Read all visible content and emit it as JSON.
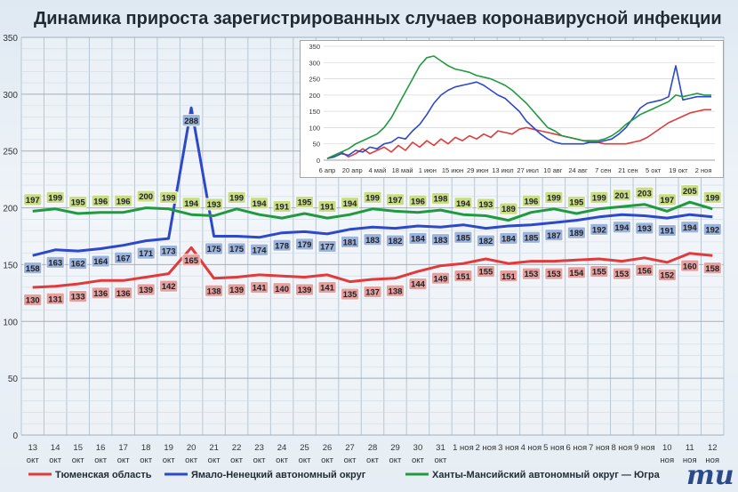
{
  "title": "Динамика прироста зарегистрированных случаев коронавирусной инфекции",
  "logo_text": "mu",
  "colors": {
    "red": "#e03a3a",
    "blue": "#2d48c8",
    "green": "#1f9a3f",
    "red_label_bg": "#e6a0a0",
    "blue_label_bg": "#9cb3dd",
    "green_label_bg": "#c8dd86"
  },
  "chart_data": [
    {
      "type": "line",
      "title": "Динамика прироста зарегистрированных случаев коронавирусной инфекции",
      "ylim": [
        0,
        350
      ],
      "y_ticks": [
        0,
        50,
        100,
        150,
        200,
        250,
        300,
        350
      ],
      "grid": true,
      "legend_placement": "bottom",
      "categories": [
        {
          "day": "13",
          "month": "окт"
        },
        {
          "day": "14",
          "month": "окт"
        },
        {
          "day": "15",
          "month": "окт"
        },
        {
          "day": "16",
          "month": "окт"
        },
        {
          "day": "17",
          "month": "окт"
        },
        {
          "day": "18",
          "month": "окт"
        },
        {
          "day": "19",
          "month": "окт"
        },
        {
          "day": "20",
          "month": "окт"
        },
        {
          "day": "21",
          "month": "окт"
        },
        {
          "day": "22",
          "month": "окт"
        },
        {
          "day": "23",
          "month": "окт"
        },
        {
          "day": "24",
          "month": "окт"
        },
        {
          "day": "25",
          "month": "окт"
        },
        {
          "day": "26",
          "month": "окт"
        },
        {
          "day": "27",
          "month": "окт"
        },
        {
          "day": "28",
          "month": "окт"
        },
        {
          "day": "29",
          "month": "окт"
        },
        {
          "day": "30",
          "month": "окт"
        },
        {
          "day": "31",
          "month": "окт"
        },
        {
          "day": "1 ноя",
          "month": ""
        },
        {
          "day": "2 ноя",
          "month": ""
        },
        {
          "day": "3 ноя",
          "month": ""
        },
        {
          "day": "4 ноя",
          "month": ""
        },
        {
          "day": "5 ноя",
          "month": ""
        },
        {
          "day": "6 ноя",
          "month": ""
        },
        {
          "day": "7 ноя",
          "month": ""
        },
        {
          "day": "8 ноя",
          "month": ""
        },
        {
          "day": "9 ноя",
          "month": ""
        },
        {
          "day": "10",
          "month": "ноя"
        },
        {
          "day": "11",
          "month": "ноя"
        },
        {
          "day": "12",
          "month": "ноя"
        }
      ],
      "series": [
        {
          "name": "Тюменская область",
          "color": "#e03a3a",
          "values": [
            130,
            131,
            133,
            136,
            136,
            139,
            142,
            165,
            138,
            139,
            141,
            140,
            139,
            141,
            135,
            137,
            138,
            144,
            149,
            151,
            155,
            151,
            153,
            153,
            154,
            155,
            153,
            156,
            152,
            160,
            158
          ]
        },
        {
          "name": "Ямало-Ненецкий автономный округ",
          "color": "#2d48c8",
          "values": [
            158,
            163,
            162,
            164,
            167,
            171,
            173,
            288,
            175,
            175,
            174,
            178,
            179,
            177,
            181,
            183,
            182,
            184,
            183,
            185,
            182,
            184,
            185,
            187,
            189,
            192,
            194,
            193,
            191,
            194,
            192
          ]
        },
        {
          "name": "Ханты-Мансийский автономный округ — Югра",
          "color": "#1f9a3f",
          "values": [
            197,
            199,
            195,
            196,
            196,
            200,
            199,
            194,
            193,
            199,
            194,
            191,
            195,
            191,
            194,
            199,
            197,
            196,
            198,
            194,
            193,
            189,
            196,
            199,
            195,
            199,
            201,
            203,
            197,
            205,
            199
          ]
        }
      ]
    },
    {
      "type": "line",
      "ylim": [
        0,
        350
      ],
      "y_ticks": [
        0,
        50,
        100,
        150,
        200,
        250,
        300,
        350
      ],
      "grid": true,
      "x_ticks": [
        "6 апр",
        "20 апр",
        "4 май",
        "18 май",
        "1 июн",
        "15 июн",
        "29 июн",
        "13 июл",
        "27 июл",
        "10 авг",
        "24 авг",
        "7 сен",
        "21 сен",
        "5 окт",
        "19 окт",
        "2 ноя"
      ],
      "series": [
        {
          "color": "#e03a3a",
          "values": [
            5,
            15,
            25,
            10,
            20,
            35,
            20,
            30,
            40,
            25,
            45,
            30,
            55,
            40,
            60,
            45,
            65,
            50,
            70,
            60,
            75,
            65,
            80,
            70,
            90,
            85,
            80,
            95,
            100,
            95,
            90,
            85,
            80,
            75,
            70,
            65,
            60,
            55,
            55,
            50,
            50,
            50,
            50,
            55,
            60,
            70,
            85,
            100,
            115,
            125,
            135,
            145,
            150,
            155,
            155
          ]
        },
        {
          "color": "#2d48c8",
          "values": [
            5,
            10,
            20,
            15,
            30,
            25,
            40,
            35,
            50,
            55,
            70,
            65,
            90,
            110,
            140,
            175,
            200,
            215,
            225,
            230,
            235,
            240,
            230,
            215,
            200,
            190,
            170,
            150,
            120,
            100,
            80,
            65,
            55,
            50,
            50,
            50,
            50,
            55,
            55,
            60,
            65,
            80,
            100,
            130,
            160,
            175,
            180,
            185,
            195,
            290,
            185,
            190,
            195,
            195,
            195
          ]
        },
        {
          "color": "#1f9a3f",
          "values": [
            5,
            15,
            25,
            35,
            50,
            60,
            70,
            80,
            100,
            130,
            170,
            210,
            250,
            290,
            315,
            320,
            305,
            290,
            280,
            275,
            270,
            260,
            255,
            250,
            240,
            230,
            215,
            195,
            175,
            150,
            125,
            100,
            90,
            75,
            70,
            65,
            60,
            60,
            60,
            65,
            75,
            90,
            110,
            125,
            140,
            150,
            160,
            170,
            180,
            200,
            195,
            200,
            205,
            200,
            200
          ]
        }
      ]
    }
  ],
  "legend": [
    {
      "label": "Тюменская область",
      "color": "#e03a3a"
    },
    {
      "label": "Ямало-Ненецкий автономный округ",
      "color": "#2d48c8"
    },
    {
      "label": "Ханты-Мансийский автономный округ — Югра",
      "color": "#1f9a3f"
    }
  ]
}
